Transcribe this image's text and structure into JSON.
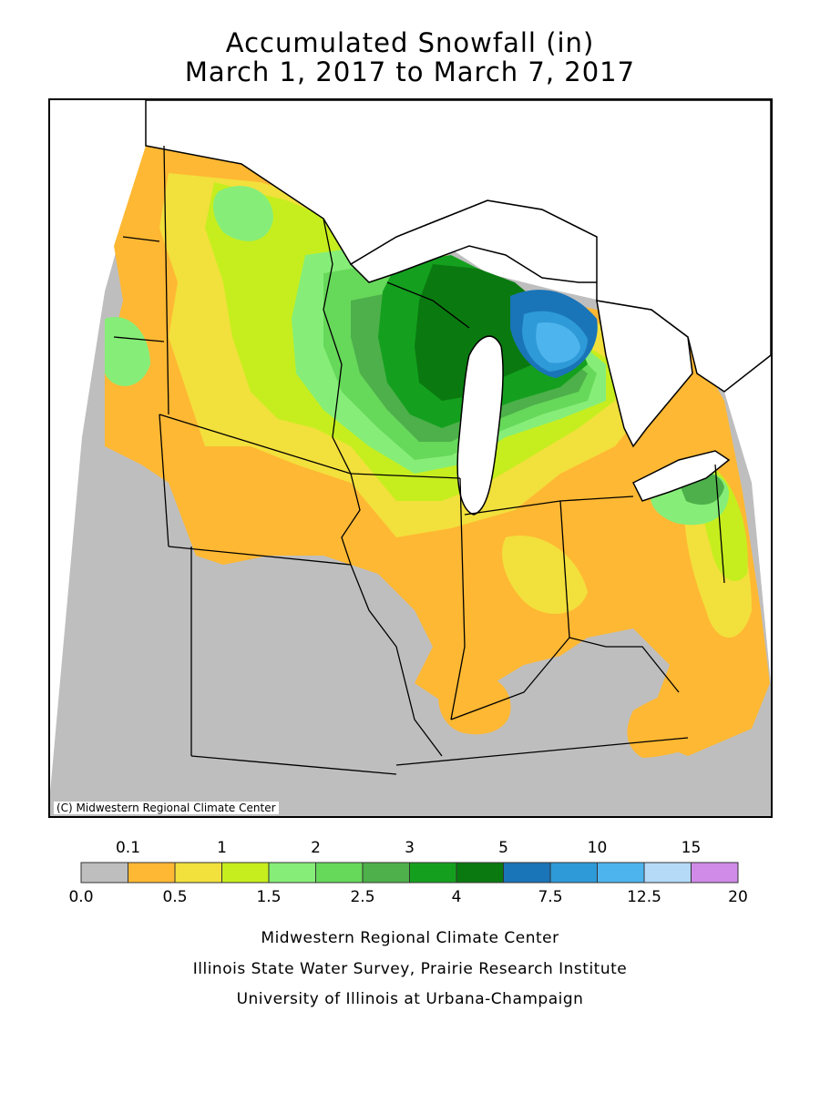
{
  "title": {
    "line1": "Accumulated Snowfall (in)",
    "line2": "March 1, 2017 to March 7, 2017"
  },
  "map": {
    "copyright": "(C) Midwestern Regional Climate Center",
    "region": "Upper Midwest / Great Lakes",
    "background_color": "#bebebe",
    "water_color": "#ffffff",
    "border_color": "#000000"
  },
  "legend": {
    "bins": [
      {
        "range": "0.0-0.1",
        "color": "#bebebe"
      },
      {
        "range": "0.1-0.5",
        "color": "#ffb833"
      },
      {
        "range": "0.5-1",
        "color": "#f2e03c"
      },
      {
        "range": "1-1.5",
        "color": "#c6ee1e"
      },
      {
        "range": "1.5-2",
        "color": "#86ee78"
      },
      {
        "range": "2-2.5",
        "color": "#66d85a"
      },
      {
        "range": "2.5-3",
        "color": "#4db04a"
      },
      {
        "range": "3-4",
        "color": "#14a01e"
      },
      {
        "range": "4-5",
        "color": "#0a7a10"
      },
      {
        "range": "5-7.5",
        "color": "#1a74b8"
      },
      {
        "range": "7.5-10",
        "color": "#2e9ad8"
      },
      {
        "range": "10-12.5",
        "color": "#4eb4ee"
      },
      {
        "range": "12.5-15",
        "color": "#b4daf8"
      },
      {
        "range": "15-20",
        "color": "#d08ae8"
      }
    ],
    "top_labels": [
      "0.1",
      "1",
      "2",
      "3",
      "5",
      "10",
      "15"
    ],
    "bottom_labels": [
      "0.0",
      "0.5",
      "1.5",
      "2.5",
      "4",
      "7.5",
      "12.5",
      "20"
    ]
  },
  "footer": {
    "line1": "Midwestern Regional Climate Center",
    "line2": "Illinois State Water Survey, Prairie Research Institute",
    "line3": "University of Illinois at Urbana-Champaign"
  }
}
